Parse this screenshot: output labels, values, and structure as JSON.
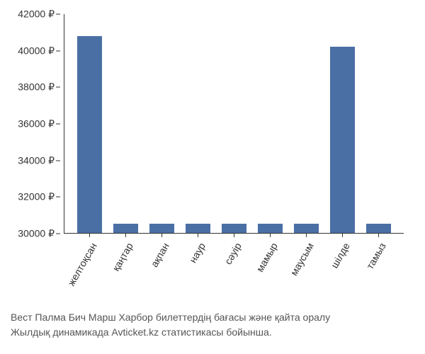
{
  "chart": {
    "type": "bar",
    "categories": [
      "желтоқсан",
      "қаңтар",
      "ақпан",
      "наур",
      "сәуір",
      "мамыр",
      "маусым",
      "шілде",
      "тамыз"
    ],
    "values": [
      40800,
      30500,
      30500,
      30500,
      30500,
      30500,
      30500,
      40200,
      30500
    ],
    "bar_color": "#4a6fa5",
    "ylim": [
      30000,
      42000
    ],
    "ytick_step": 2000,
    "y_suffix": " ₽",
    "background_color": "#ffffff",
    "axis_color": "#333333",
    "label_fontsize": 14,
    "x_label_rotation": -60
  },
  "description": {
    "line1": "Вест Палма Бич Марш Харбор билеттердің бағасы және қайта оралу",
    "line2": "Жылдық динамикада Avticket.kz статистикасы бойынша."
  }
}
